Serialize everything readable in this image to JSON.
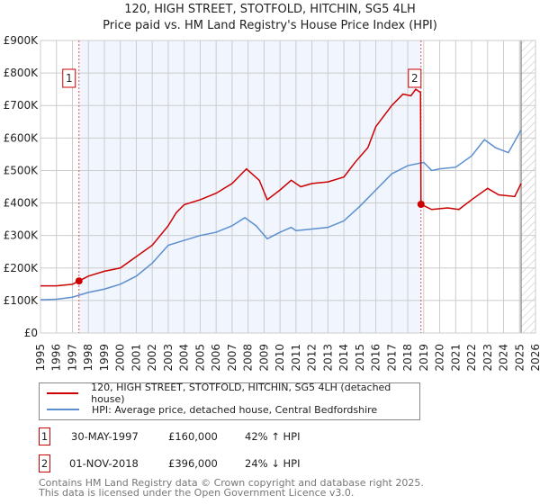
{
  "title": "120, HIGH STREET, STOTFOLD, HITCHIN, SG5 4LH",
  "subtitle": "Price paid vs. HM Land Registry's House Price Index (HPI)",
  "chart_data": {
    "type": "line",
    "xlim": [
      1995,
      2026
    ],
    "ylim": [
      0,
      900000
    ],
    "x_ticks": [
      "1995",
      "1996",
      "1997",
      "1998",
      "1999",
      "2000",
      "2001",
      "2002",
      "2003",
      "2004",
      "2005",
      "2006",
      "2007",
      "2008",
      "2009",
      "2010",
      "2011",
      "2012",
      "2013",
      "2014",
      "2015",
      "2016",
      "2017",
      "2018",
      "2019",
      "2020",
      "2021",
      "2022",
      "2023",
      "2024",
      "2025",
      "2026"
    ],
    "y_ticks": [
      {
        "v": 0,
        "label": "£0"
      },
      {
        "v": 100000,
        "label": "£100K"
      },
      {
        "v": 200000,
        "label": "£200K"
      },
      {
        "v": 300000,
        "label": "£300K"
      },
      {
        "v": 400000,
        "label": "£400K"
      },
      {
        "v": 500000,
        "label": "£500K"
      },
      {
        "v": 600000,
        "label": "£600K"
      },
      {
        "v": 700000,
        "label": "£700K"
      },
      {
        "v": 800000,
        "label": "£800K"
      },
      {
        "v": 900000,
        "label": "£900K"
      }
    ],
    "grid": true,
    "series": [
      {
        "name": "120, HIGH STREET, STOTFOLD, HITCHIN, SG5 4LH (detached house)",
        "color": "#cc0000",
        "x": [
          1995,
          1996,
          1997,
          1997.41,
          1998,
          1999,
          2000,
          2001,
          2002,
          2003,
          2003.5,
          2004,
          2005,
          2006,
          2007,
          2007.9,
          2008.7,
          2009.2,
          2010,
          2010.7,
          2011.3,
          2012,
          2013,
          2014,
          2014.7,
          2015.5,
          2016,
          2017,
          2017.7,
          2018.2,
          2018.5,
          2018.8,
          2018.83,
          2019.5,
          2020.5,
          2021.2,
          2022,
          2023,
          2023.7,
          2024.7,
          2025.1
        ],
        "y": [
          145000,
          145000,
          150000,
          160000,
          175000,
          190000,
          200000,
          235000,
          270000,
          330000,
          370000,
          395000,
          410000,
          430000,
          460000,
          505000,
          470000,
          410000,
          440000,
          470000,
          450000,
          460000,
          465000,
          480000,
          525000,
          570000,
          635000,
          700000,
          735000,
          730000,
          750000,
          740000,
          396000,
          380000,
          385000,
          380000,
          410000,
          445000,
          425000,
          420000,
          460000
        ]
      },
      {
        "name": "HPI: Average price, detached house, Central Bedfordshire",
        "color": "#5b8fd0",
        "x": [
          1995,
          1996,
          1997,
          1998,
          1999,
          2000,
          2001,
          2002,
          2003,
          2004,
          2005,
          2006,
          2007,
          2007.8,
          2008.5,
          2009.2,
          2010,
          2010.7,
          2011,
          2012,
          2013,
          2014,
          2015,
          2016,
          2017,
          2018,
          2019,
          2019.5,
          2020,
          2021,
          2022,
          2022.8,
          2023.5,
          2024.3,
          2025.1
        ],
        "y": [
          102000,
          104000,
          110000,
          125000,
          135000,
          150000,
          175000,
          215000,
          270000,
          285000,
          300000,
          310000,
          330000,
          355000,
          330000,
          290000,
          310000,
          325000,
          315000,
          320000,
          325000,
          345000,
          390000,
          440000,
          490000,
          515000,
          525000,
          500000,
          505000,
          510000,
          545000,
          595000,
          570000,
          555000,
          625000
        ]
      }
    ],
    "sales": [
      {
        "label": "1",
        "x": 1997.41,
        "y": 160000
      },
      {
        "label": "2",
        "x": 2018.83,
        "y": 396000
      }
    ],
    "forecast_start": 2025.1
  },
  "legend": {
    "series1": "120, HIGH STREET, STOTFOLD, HITCHIN, SG5 4LH (detached house)",
    "series2": "HPI: Average price, detached house, Central Bedfordshire"
  },
  "sales_table": [
    {
      "num": "1",
      "date": "30-MAY-1997",
      "price": "£160,000",
      "hpi": "42% ↑ HPI"
    },
    {
      "num": "2",
      "date": "01-NOV-2018",
      "price": "£396,000",
      "hpi": "24% ↓ HPI"
    }
  ],
  "footer": {
    "line1": "Contains HM Land Registry data © Crown copyright and database right 2025.",
    "line2": "This data is licensed under the Open Government Licence v3.0."
  }
}
